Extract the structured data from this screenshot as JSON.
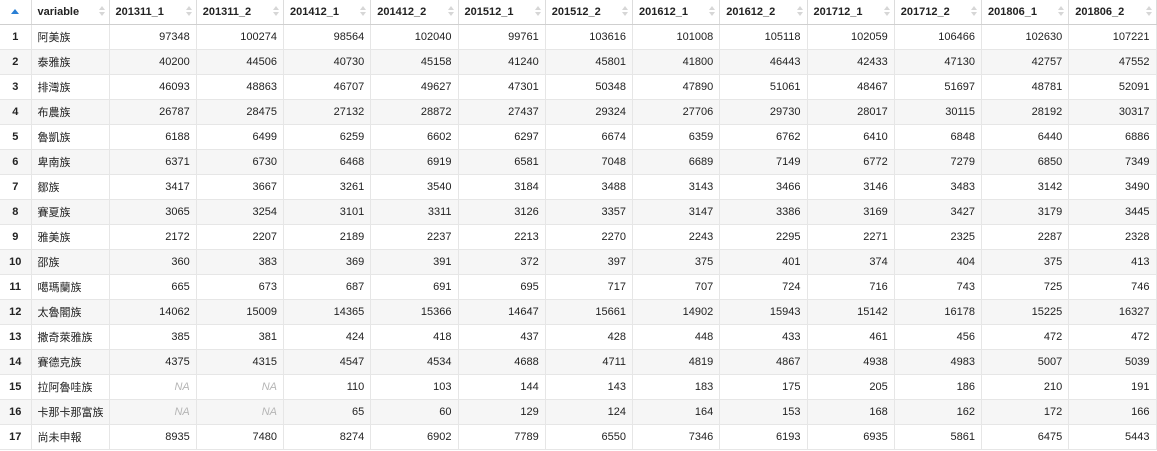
{
  "table": {
    "headers": [
      "variable",
      "201311_1",
      "201311_2",
      "201412_1",
      "201412_2",
      "201512_1",
      "201512_2",
      "201612_1",
      "201612_2",
      "201712_1",
      "201712_2",
      "201806_1",
      "201806_2"
    ],
    "rows": [
      {
        "index": "1",
        "variable": "阿美族",
        "values": [
          "97348",
          "100274",
          "98564",
          "102040",
          "99761",
          "103616",
          "101008",
          "105118",
          "102059",
          "106466",
          "102630",
          "107221"
        ]
      },
      {
        "index": "2",
        "variable": "泰雅族",
        "values": [
          "40200",
          "44506",
          "40730",
          "45158",
          "41240",
          "45801",
          "41800",
          "46443",
          "42433",
          "47130",
          "42757",
          "47552"
        ]
      },
      {
        "index": "3",
        "variable": "排灣族",
        "values": [
          "46093",
          "48863",
          "46707",
          "49627",
          "47301",
          "50348",
          "47890",
          "51061",
          "48467",
          "51697",
          "48781",
          "52091"
        ]
      },
      {
        "index": "4",
        "variable": "布農族",
        "values": [
          "26787",
          "28475",
          "27132",
          "28872",
          "27437",
          "29324",
          "27706",
          "29730",
          "28017",
          "30115",
          "28192",
          "30317"
        ]
      },
      {
        "index": "5",
        "variable": "魯凱族",
        "values": [
          "6188",
          "6499",
          "6259",
          "6602",
          "6297",
          "6674",
          "6359",
          "6762",
          "6410",
          "6848",
          "6440",
          "6886"
        ]
      },
      {
        "index": "6",
        "variable": "卑南族",
        "values": [
          "6371",
          "6730",
          "6468",
          "6919",
          "6581",
          "7048",
          "6689",
          "7149",
          "6772",
          "7279",
          "6850",
          "7349"
        ]
      },
      {
        "index": "7",
        "variable": "鄒族",
        "values": [
          "3417",
          "3667",
          "3261",
          "3540",
          "3184",
          "3488",
          "3143",
          "3466",
          "3146",
          "3483",
          "3142",
          "3490"
        ]
      },
      {
        "index": "8",
        "variable": "賽夏族",
        "values": [
          "3065",
          "3254",
          "3101",
          "3311",
          "3126",
          "3357",
          "3147",
          "3386",
          "3169",
          "3427",
          "3179",
          "3445"
        ]
      },
      {
        "index": "9",
        "variable": "雅美族",
        "values": [
          "2172",
          "2207",
          "2189",
          "2237",
          "2213",
          "2270",
          "2243",
          "2295",
          "2271",
          "2325",
          "2287",
          "2328"
        ]
      },
      {
        "index": "10",
        "variable": "邵族",
        "values": [
          "360",
          "383",
          "369",
          "391",
          "372",
          "397",
          "375",
          "401",
          "374",
          "404",
          "375",
          "413"
        ]
      },
      {
        "index": "11",
        "variable": "噶瑪蘭族",
        "values": [
          "665",
          "673",
          "687",
          "691",
          "695",
          "717",
          "707",
          "724",
          "716",
          "743",
          "725",
          "746"
        ]
      },
      {
        "index": "12",
        "variable": "太魯閣族",
        "values": [
          "14062",
          "15009",
          "14365",
          "15366",
          "14647",
          "15661",
          "14902",
          "15943",
          "15142",
          "16178",
          "15225",
          "16327"
        ]
      },
      {
        "index": "13",
        "variable": "撒奇萊雅族",
        "values": [
          "385",
          "381",
          "424",
          "418",
          "437",
          "428",
          "448",
          "433",
          "461",
          "456",
          "472",
          "472"
        ]
      },
      {
        "index": "14",
        "variable": "賽德克族",
        "values": [
          "4375",
          "4315",
          "4547",
          "4534",
          "4688",
          "4711",
          "4819",
          "4867",
          "4938",
          "4983",
          "5007",
          "5039"
        ]
      },
      {
        "index": "15",
        "variable": "拉阿魯哇族",
        "values": [
          "NA",
          "NA",
          "110",
          "103",
          "144",
          "143",
          "183",
          "175",
          "205",
          "186",
          "210",
          "191"
        ]
      },
      {
        "index": "16",
        "variable": "卡那卡那富族",
        "values": [
          "NA",
          "NA",
          "65",
          "60",
          "129",
          "124",
          "164",
          "153",
          "168",
          "162",
          "172",
          "166"
        ]
      },
      {
        "index": "17",
        "variable": "尚未申報",
        "values": [
          "8935",
          "7480",
          "8274",
          "6902",
          "7789",
          "6550",
          "7346",
          "6193",
          "6935",
          "5861",
          "6475",
          "5443"
        ]
      }
    ]
  },
  "colors": {
    "sort_active": "#2a7fd4",
    "sort_inactive": "#d6d6d6",
    "na_text": "#b5b5b5",
    "stripe": "#f6f6f6"
  }
}
